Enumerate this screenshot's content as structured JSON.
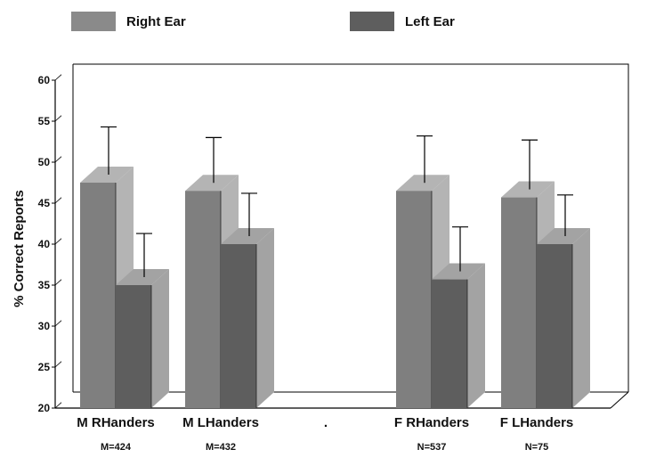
{
  "legend": {
    "right_label": "Right Ear",
    "left_label": "Left Ear"
  },
  "colors": {
    "right_front": "#7f7f7f",
    "right_side": "#b4b4b4",
    "left_front": "#5e5e5e",
    "left_side": "#a3a3a3",
    "wall": "#ffffff",
    "axis": "#000000"
  },
  "chart_data": {
    "type": "bar",
    "ylabel": "% Correct Reports",
    "ylim": [
      20,
      60
    ],
    "yticks": [
      20,
      25,
      30,
      35,
      40,
      45,
      50,
      55,
      60
    ],
    "grid": false,
    "legend_position": "top",
    "categories": [
      "M RHanders",
      "M LHanders",
      ".",
      "F RHanders",
      "F LHanders"
    ],
    "sample_sizes": [
      "M=424",
      "M=432",
      "",
      "N=537",
      "N=75"
    ],
    "series": [
      {
        "name": "Right Ear",
        "values": [
          47.5,
          46.5,
          null,
          46.5,
          45.7
        ],
        "error_top": [
          54.3,
          53.0,
          null,
          53.2,
          52.7
        ]
      },
      {
        "name": "Left Ear",
        "values": [
          35.0,
          40.0,
          null,
          35.7,
          40.0
        ],
        "error_top": [
          41.3,
          46.2,
          null,
          42.1,
          46.0
        ]
      }
    ]
  }
}
